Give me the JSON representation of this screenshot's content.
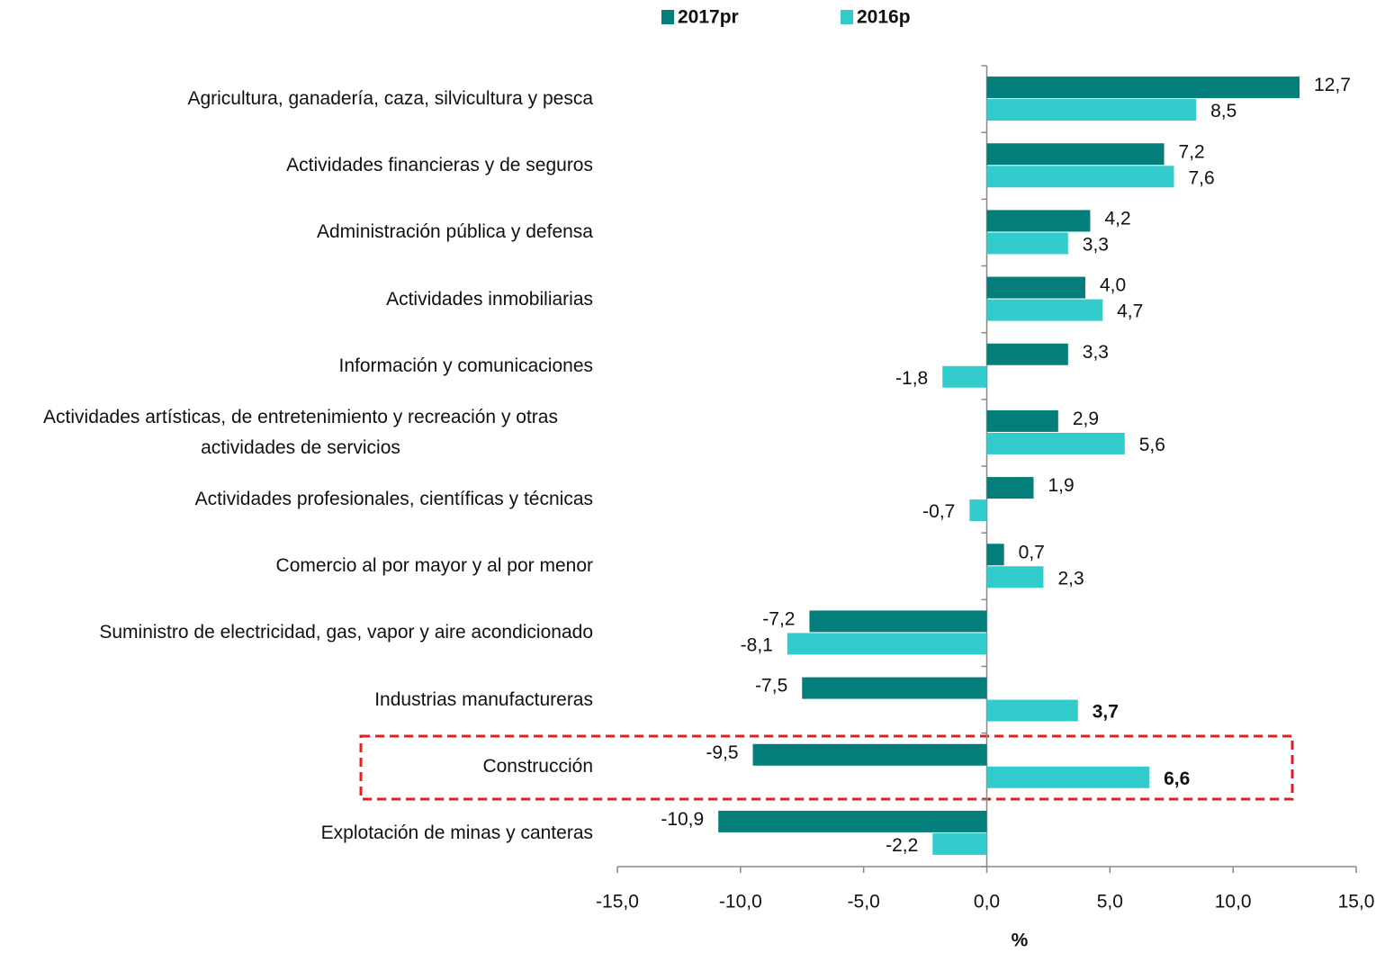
{
  "chart_data": {
    "type": "bar",
    "orientation": "horizontal",
    "categories": [
      "Agricultura, ganadería, caza, silvicultura y pesca",
      "Actividades financieras y de seguros",
      "Administración pública y defensa",
      "Actividades inmobiliarias",
      "Información y comunicaciones",
      "Actividades artísticas, de entretenimiento y recreación y otras actividades de servicios",
      "Actividades profesionales, científicas y técnicas",
      "Comercio al por mayor y al por menor",
      "Suministro de electricidad, gas, vapor y aire acondicionado",
      "Industrias manufactureras",
      "Construcción",
      "Explotación de minas y canteras"
    ],
    "series": [
      {
        "name": "2017pr",
        "color": "#047e7a",
        "values": [
          12.7,
          7.2,
          4.2,
          4.0,
          3.3,
          2.9,
          1.9,
          0.7,
          -7.2,
          -7.5,
          -9.5,
          -10.9
        ],
        "value_labels": [
          "12,7",
          "7,2",
          "4,2",
          "4,0",
          "3,3",
          "2,9",
          "1,9",
          "0,7",
          "-7,2",
          "-7,5",
          "-9,5",
          "-10,9"
        ]
      },
      {
        "name": "2016p",
        "color": "#33cccc",
        "values": [
          8.5,
          7.6,
          3.3,
          4.7,
          -1.8,
          5.6,
          -0.7,
          2.3,
          -8.1,
          3.7,
          6.6,
          -2.2
        ],
        "value_labels": [
          "8,5",
          "7,6",
          "3,3",
          "4,7",
          "-1,8",
          "5,6",
          "-0,7",
          "2,3",
          "-8,1",
          "3,7",
          "6,6",
          "-2,2"
        ]
      }
    ],
    "xlabel": "%",
    "xlim": [
      -15,
      15
    ],
    "xticks": [
      {
        "value": -15,
        "label": "-15,0"
      },
      {
        "value": -10,
        "label": "-10,0"
      },
      {
        "value": -5,
        "label": "-5,0"
      },
      {
        "value": 0,
        "label": "0,0"
      },
      {
        "value": 5,
        "label": "5,0"
      },
      {
        "value": 10,
        "label": "10,0"
      },
      {
        "value": 15,
        "label": "15,0"
      }
    ],
    "legend": "top",
    "grid": false
  }
}
